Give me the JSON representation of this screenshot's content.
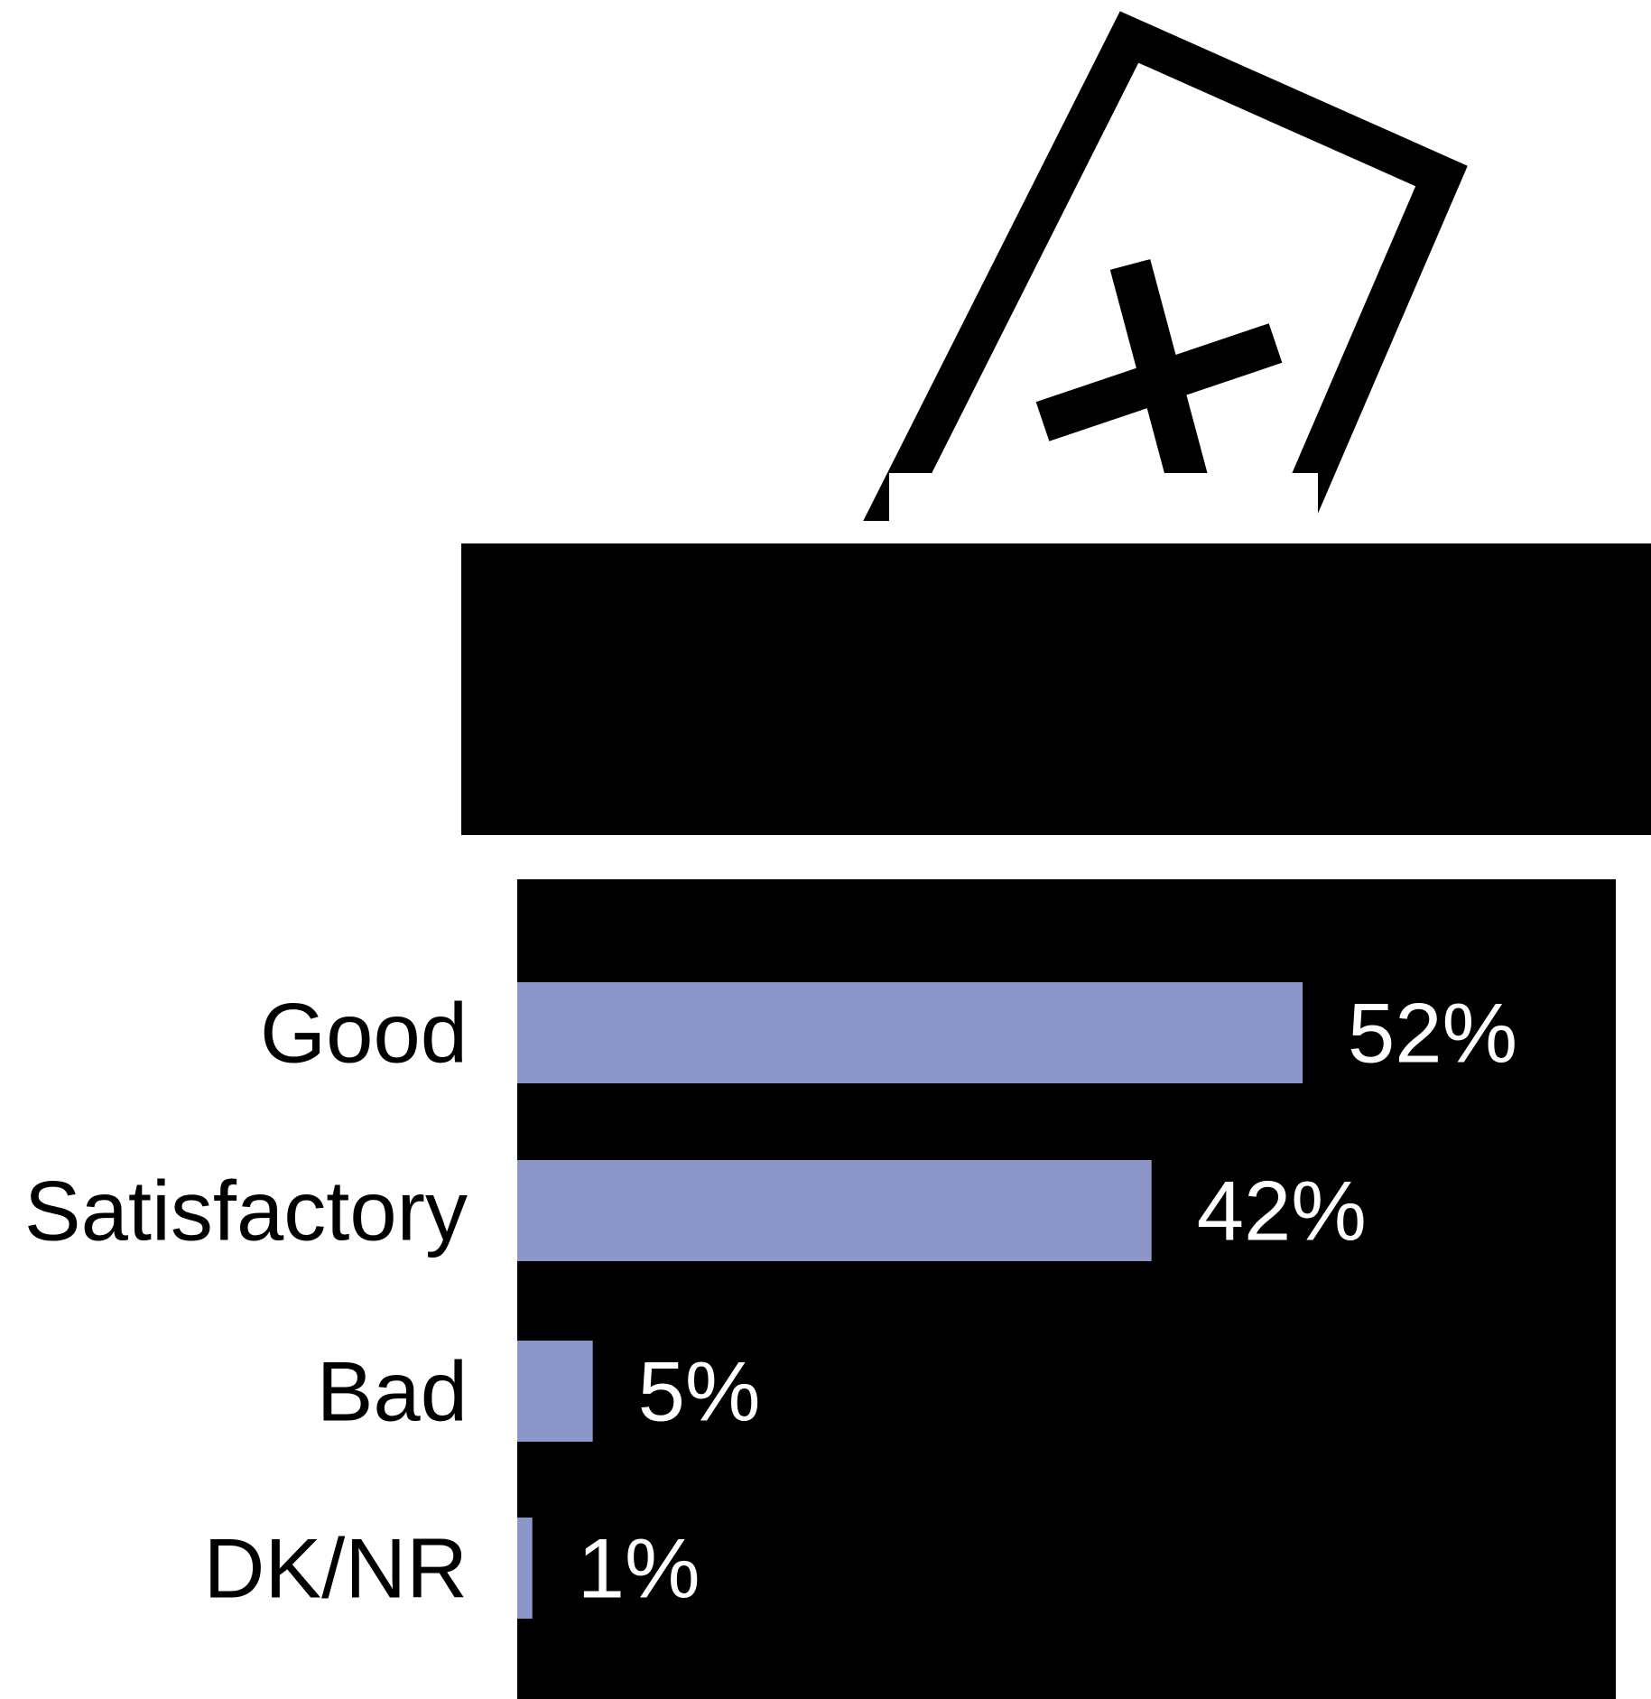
{
  "colors": {
    "background": "#ffffff",
    "ink": "#000000",
    "bar": "#8c96c9",
    "value_text": "#ffffff"
  },
  "icons": [
    "ballot-box-icon",
    "ballot-paper-icon",
    "x-mark-icon"
  ],
  "chart_data": {
    "type": "bar",
    "orientation": "horizontal",
    "categories": [
      "Good",
      "Satisfactory",
      "Bad",
      "DK/NR"
    ],
    "values": [
      52,
      42,
      5,
      1
    ],
    "value_labels": [
      "52%",
      "42%",
      "5%",
      "1%"
    ],
    "unit": "%",
    "xlim": [
      0,
      100
    ],
    "title": "",
    "xlabel": "",
    "ylabel": "",
    "grid": false,
    "legend": "none"
  }
}
